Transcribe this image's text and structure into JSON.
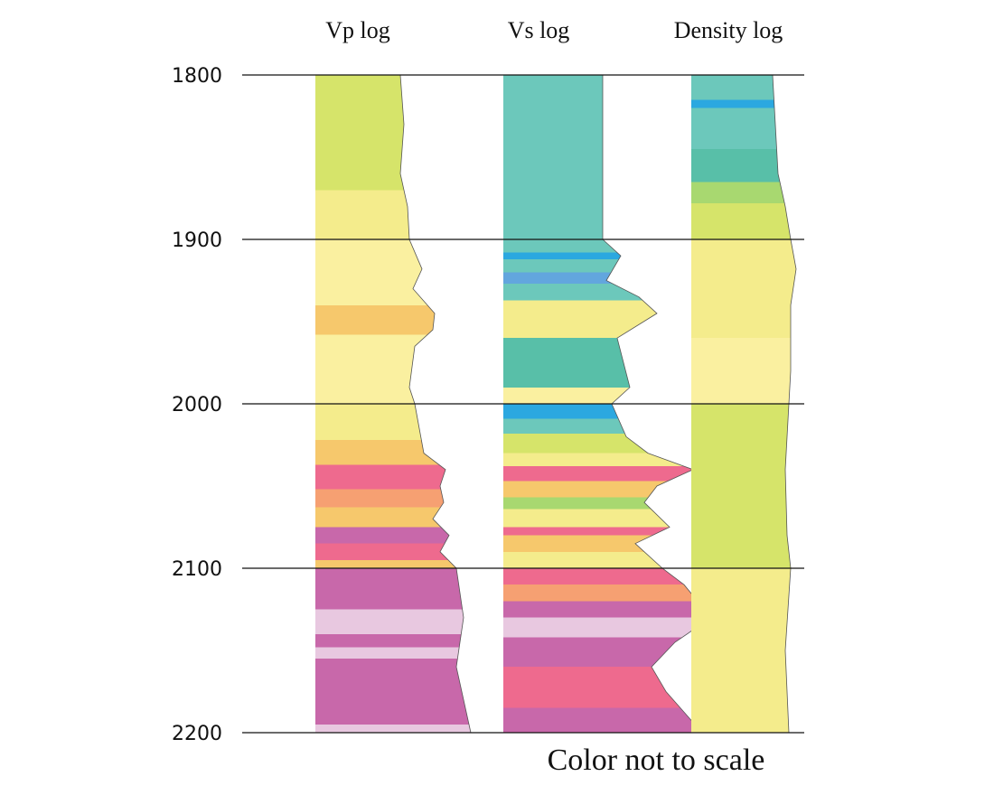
{
  "chart_data": {
    "type": "heatmap",
    "title": "",
    "xlabel": "",
    "ylabel": "",
    "ylim": [
      1800,
      2200
    ],
    "y_ticks": [
      "1800",
      "1900",
      "2000",
      "2100",
      "2200"
    ],
    "annotation": "Color not to scale",
    "grid": true,
    "palette": {
      "teal": "#6cc8bb",
      "teal_dark": "#58bfa8",
      "blue": "#2ba8e0",
      "blue_mid": "#62a6de",
      "green": "#a8d870",
      "yellow_green": "#d6e46a",
      "yellow": "#f4ec8c",
      "pale_yellow": "#faf0a0",
      "orange": "#f6c86c",
      "salmon": "#f6a072",
      "pink": "#ee6a8e",
      "magenta": "#c868aa",
      "pale_pink": "#e8c8e0"
    },
    "tracks": [
      {
        "name": "Vp log",
        "intervals": [
          {
            "top": 1800,
            "base": 1855,
            "color": "yellow_green"
          },
          {
            "top": 1855,
            "base": 1870,
            "color": "yellow_green"
          },
          {
            "top": 1870,
            "base": 1900,
            "color": "yellow"
          },
          {
            "top": 1900,
            "base": 1940,
            "color": "pale_yellow"
          },
          {
            "top": 1940,
            "base": 1958,
            "color": "orange"
          },
          {
            "top": 1958,
            "base": 2000,
            "color": "pale_yellow"
          },
          {
            "top": 2000,
            "base": 2022,
            "color": "yellow"
          },
          {
            "top": 2022,
            "base": 2037,
            "color": "orange"
          },
          {
            "top": 2037,
            "base": 2052,
            "color": "pink"
          },
          {
            "top": 2052,
            "base": 2063,
            "color": "salmon"
          },
          {
            "top": 2063,
            "base": 2075,
            "color": "orange"
          },
          {
            "top": 2075,
            "base": 2085,
            "color": "magenta"
          },
          {
            "top": 2085,
            "base": 2095,
            "color": "pink"
          },
          {
            "top": 2095,
            "base": 2100,
            "color": "orange"
          },
          {
            "top": 2100,
            "base": 2125,
            "color": "magenta"
          },
          {
            "top": 2125,
            "base": 2140,
            "color": "pale_pink"
          },
          {
            "top": 2140,
            "base": 2148,
            "color": "magenta"
          },
          {
            "top": 2148,
            "base": 2155,
            "color": "pale_pink"
          },
          {
            "top": 2155,
            "base": 2195,
            "color": "magenta"
          },
          {
            "top": 2195,
            "base": 2200,
            "color": "pale_pink"
          }
        ],
        "edge": [
          [
            1800,
            0.47
          ],
          [
            1830,
            0.49
          ],
          [
            1860,
            0.47
          ],
          [
            1880,
            0.51
          ],
          [
            1900,
            0.52
          ],
          [
            1918,
            0.59
          ],
          [
            1930,
            0.54
          ],
          [
            1945,
            0.66
          ],
          [
            1955,
            0.65
          ],
          [
            1965,
            0.55
          ],
          [
            1990,
            0.52
          ],
          [
            2000,
            0.55
          ],
          [
            2030,
            0.6
          ],
          [
            2040,
            0.72
          ],
          [
            2050,
            0.69
          ],
          [
            2060,
            0.71
          ],
          [
            2070,
            0.65
          ],
          [
            2080,
            0.74
          ],
          [
            2090,
            0.69
          ],
          [
            2100,
            0.78
          ],
          [
            2130,
            0.82
          ],
          [
            2160,
            0.78
          ],
          [
            2200,
            0.86
          ]
        ]
      },
      {
        "name": "Vs log",
        "intervals": [
          {
            "top": 1800,
            "base": 1908,
            "color": "teal"
          },
          {
            "top": 1908,
            "base": 1912,
            "color": "blue"
          },
          {
            "top": 1912,
            "base": 1920,
            "color": "teal"
          },
          {
            "top": 1920,
            "base": 1927,
            "color": "blue_mid"
          },
          {
            "top": 1927,
            "base": 1937,
            "color": "teal"
          },
          {
            "top": 1937,
            "base": 1960,
            "color": "yellow"
          },
          {
            "top": 1960,
            "base": 1990,
            "color": "teal_dark"
          },
          {
            "top": 1990,
            "base": 2000,
            "color": "pale_yellow"
          },
          {
            "top": 2000,
            "base": 2009,
            "color": "blue"
          },
          {
            "top": 2009,
            "base": 2018,
            "color": "teal"
          },
          {
            "top": 2018,
            "base": 2030,
            "color": "yellow_green"
          },
          {
            "top": 2030,
            "base": 2038,
            "color": "yellow"
          },
          {
            "top": 2038,
            "base": 2047,
            "color": "pink"
          },
          {
            "top": 2047,
            "base": 2057,
            "color": "orange"
          },
          {
            "top": 2057,
            "base": 2064,
            "color": "green"
          },
          {
            "top": 2064,
            "base": 2075,
            "color": "yellow"
          },
          {
            "top": 2075,
            "base": 2080,
            "color": "pink"
          },
          {
            "top": 2080,
            "base": 2090,
            "color": "orange"
          },
          {
            "top": 2090,
            "base": 2100,
            "color": "yellow"
          },
          {
            "top": 2100,
            "base": 2110,
            "color": "pink"
          },
          {
            "top": 2110,
            "base": 2120,
            "color": "salmon"
          },
          {
            "top": 2120,
            "base": 2130,
            "color": "magenta"
          },
          {
            "top": 2130,
            "base": 2142,
            "color": "pale_pink"
          },
          {
            "top": 2142,
            "base": 2160,
            "color": "magenta"
          },
          {
            "top": 2160,
            "base": 2185,
            "color": "pink"
          },
          {
            "top": 2185,
            "base": 2200,
            "color": "magenta"
          }
        ],
        "edge": [
          [
            1800,
            0.55
          ],
          [
            1900,
            0.55
          ],
          [
            1910,
            0.65
          ],
          [
            1925,
            0.57
          ],
          [
            1935,
            0.75
          ],
          [
            1945,
            0.85
          ],
          [
            1960,
            0.63
          ],
          [
            1990,
            0.7
          ],
          [
            2000,
            0.6
          ],
          [
            2020,
            0.68
          ],
          [
            2030,
            0.8
          ],
          [
            2040,
            1.05
          ],
          [
            2050,
            0.85
          ],
          [
            2060,
            0.78
          ],
          [
            2075,
            0.92
          ],
          [
            2085,
            0.73
          ],
          [
            2100,
            0.88
          ],
          [
            2110,
            1.0
          ],
          [
            2130,
            1.15
          ],
          [
            2145,
            0.95
          ],
          [
            2160,
            0.82
          ],
          [
            2175,
            0.9
          ],
          [
            2200,
            1.1
          ]
        ]
      },
      {
        "name": "Density log",
        "intervals": [
          {
            "top": 1800,
            "base": 1815,
            "color": "teal"
          },
          {
            "top": 1815,
            "base": 1820,
            "color": "blue"
          },
          {
            "top": 1820,
            "base": 1845,
            "color": "teal"
          },
          {
            "top": 1845,
            "base": 1865,
            "color": "teal_dark"
          },
          {
            "top": 1865,
            "base": 1878,
            "color": "green"
          },
          {
            "top": 1878,
            "base": 1900,
            "color": "yellow_green"
          },
          {
            "top": 1900,
            "base": 1960,
            "color": "yellow"
          },
          {
            "top": 1960,
            "base": 2000,
            "color": "pale_yellow"
          },
          {
            "top": 2000,
            "base": 2060,
            "color": "yellow_green"
          },
          {
            "top": 2060,
            "base": 2100,
            "color": "yellow_green"
          },
          {
            "top": 2100,
            "base": 2160,
            "color": "yellow"
          },
          {
            "top": 2160,
            "base": 2200,
            "color": "yellow"
          }
        ],
        "edge": [
          [
            1800,
            0.45
          ],
          [
            1860,
            0.48
          ],
          [
            1880,
            0.52
          ],
          [
            1900,
            0.55
          ],
          [
            1918,
            0.58
          ],
          [
            1940,
            0.55
          ],
          [
            1980,
            0.55
          ],
          [
            2000,
            0.54
          ],
          [
            2040,
            0.52
          ],
          [
            2080,
            0.53
          ],
          [
            2100,
            0.55
          ],
          [
            2150,
            0.52
          ],
          [
            2200,
            0.54
          ]
        ]
      }
    ]
  }
}
